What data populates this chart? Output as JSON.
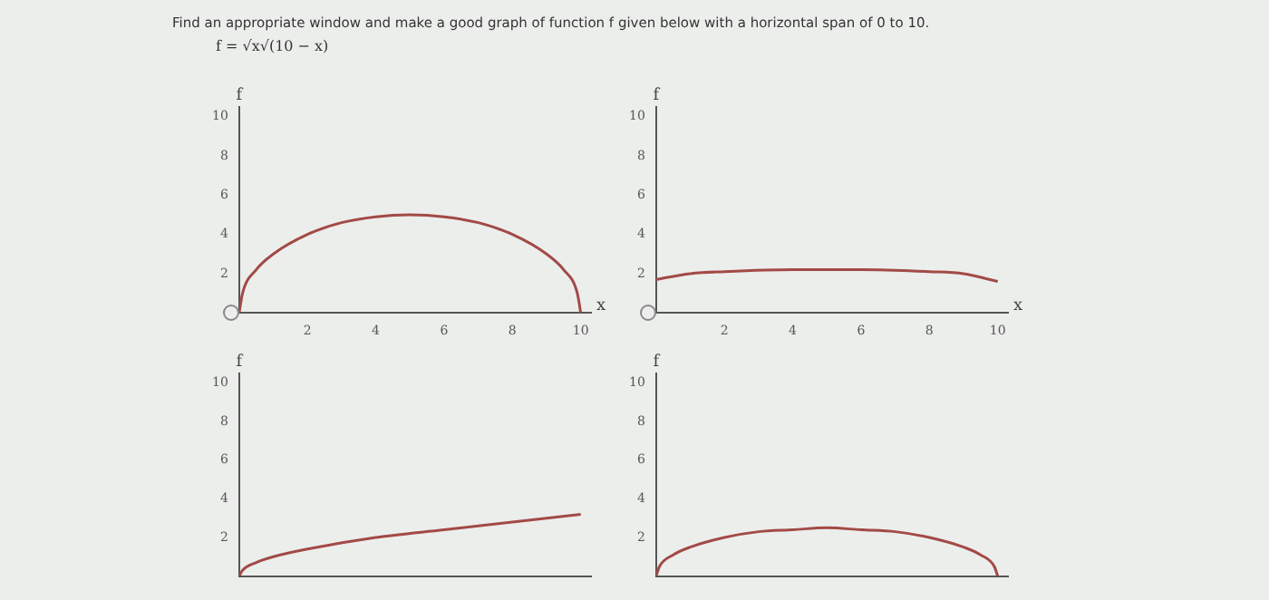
{
  "chart_data": [
    {
      "type": "other",
      "title": "Find an appropriate window and make a good graph of function f given below with a horizontal span of 0 to 10.",
      "subtitle": "f = √x√(10 − x)"
    },
    {
      "type": "line",
      "xlabel": "x",
      "ylabel": "f",
      "color": "#a24a46",
      "marker": "none",
      "xlim": [
        0,
        10.3
      ],
      "ylim": [
        0,
        10.5
      ],
      "xticks": [
        2,
        4,
        6,
        8,
        10
      ],
      "yticks": [
        2,
        4,
        6,
        8,
        10
      ],
      "x": [
        0,
        0.1,
        0.5,
        1,
        2,
        3,
        4,
        5,
        6,
        7,
        8,
        9,
        9.5,
        9.9,
        10
      ],
      "values": [
        0,
        1,
        2.2,
        3,
        4,
        4.6,
        4.9,
        5,
        4.9,
        4.6,
        4,
        3,
        2.2,
        1,
        0
      ]
    },
    {
      "type": "line",
      "xlabel": "x",
      "ylabel": "f",
      "color": "#a24a46",
      "marker": "none",
      "xlim": [
        0,
        10.3
      ],
      "ylim": [
        0,
        10.5
      ],
      "xticks": [
        2,
        4,
        6,
        8,
        10
      ],
      "yticks": [
        2,
        4,
        6,
        8,
        10
      ],
      "x": [
        0,
        1,
        2,
        4,
        5,
        6,
        8,
        9,
        10
      ],
      "values": [
        1.7,
        2,
        2.1,
        2.2,
        2.2,
        2.2,
        2.1,
        2,
        1.6
      ]
    },
    {
      "type": "line",
      "xlabel": null,
      "ylabel": "f",
      "color": "#a24a46",
      "marker": "none",
      "tick_labels": "y",
      "xlim": [
        0,
        10.3
      ],
      "ylim": [
        0,
        10.5
      ],
      "yticks": [
        2,
        4,
        6,
        8,
        10
      ],
      "x": [
        0,
        0.1,
        0.5,
        1,
        2,
        4,
        6,
        8,
        10
      ],
      "values": [
        0,
        0.3,
        0.7,
        1,
        1.4,
        2,
        2.4,
        2.8,
        3.2
      ]
    },
    {
      "type": "line",
      "xlabel": null,
      "ylabel": "f",
      "color": "#a24a46",
      "marker": "none",
      "tick_labels": "y",
      "xlim": [
        0,
        10.3
      ],
      "ylim": [
        0,
        10.5
      ],
      "yticks": [
        2,
        4,
        6,
        8,
        10
      ],
      "x": [
        0,
        0.1,
        0.5,
        1,
        2,
        3,
        4,
        5,
        6,
        7,
        8,
        9,
        9.5,
        9.9,
        10
      ],
      "values": [
        0,
        0.5,
        1.1,
        1.5,
        2,
        2.3,
        2.4,
        2.5,
        2.4,
        2.3,
        2,
        1.5,
        1.1,
        0.5,
        0
      ]
    }
  ]
}
